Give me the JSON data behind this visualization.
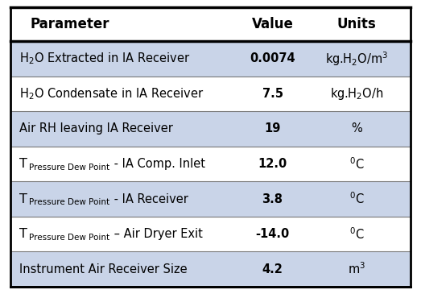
{
  "header": [
    "Parameter",
    "Value",
    "Units"
  ],
  "rows": [
    {
      "type": "h2o",
      "param": "H$_2$O Extracted in IA Receiver",
      "value": "0.0074",
      "unit": "kg.H$_2$O/m$^3$",
      "shaded": true
    },
    {
      "type": "h2o",
      "param": "H$_2$O Condensate in IA Receiver",
      "value": "7.5",
      "unit": "kg.H$_2$O/h",
      "shaded": false
    },
    {
      "type": "simple",
      "param": "Air RH leaving IA Receiver",
      "value": "19",
      "unit": "%",
      "shaded": true
    },
    {
      "type": "tdew",
      "param_T": "T",
      "param_sub": "Pressure Dew Point",
      "param_rest": " - IA Comp. Inlet",
      "value": "12.0",
      "unit": "$^0$C",
      "shaded": false
    },
    {
      "type": "tdew",
      "param_T": "T",
      "param_sub": "Pressure Dew Point",
      "param_rest": " - IA Receiver",
      "value": "3.8",
      "unit": "$^0$C",
      "shaded": true
    },
    {
      "type": "tdew",
      "param_T": "T",
      "param_sub": "Pressure Dew Point",
      "param_rest": " – Air Dryer Exit",
      "value": "-14.0",
      "unit": "$^0$C",
      "shaded": false
    },
    {
      "type": "simple",
      "param": "Instrument Air Receiver Size",
      "value": "4.2",
      "unit": "m$^3$",
      "shaded": true
    }
  ],
  "shaded_color": "#c9d4e8",
  "border_color": "#000000",
  "fig_bg": "#ffffff",
  "header_fontsize": 12,
  "row_fontsize": 10.5,
  "sub_fontsize": 7.5,
  "figsize": [
    5.23,
    3.65
  ],
  "dpi": 100
}
